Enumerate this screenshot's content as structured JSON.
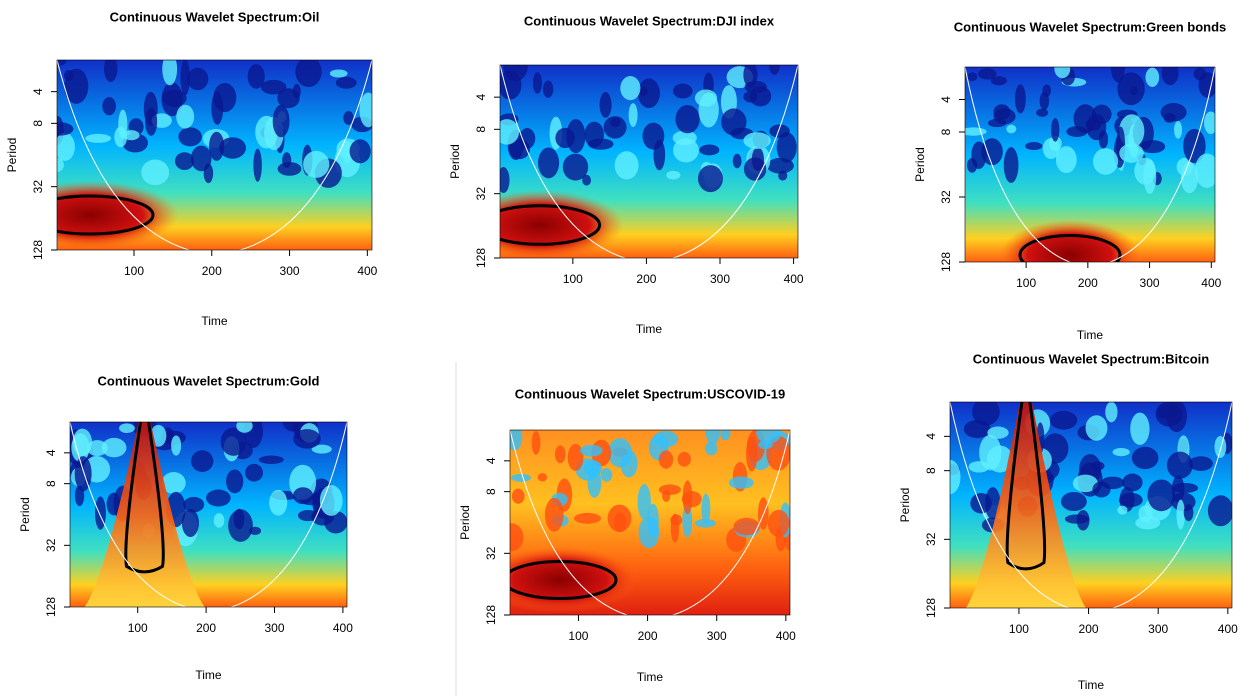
{
  "chart_data": [
    {
      "type": "heatmap",
      "title": "Continuous Wavelet Spectrum:Oil",
      "xlabel": "Time",
      "ylabel": "Period",
      "xlim": [
        1,
        406
      ],
      "xticks": [
        100,
        200,
        300,
        400
      ],
      "ylim": [
        2,
        128
      ],
      "yticks": [
        4,
        8,
        32,
        128
      ],
      "log_y": true,
      "y_inverted": true
    },
    {
      "type": "heatmap",
      "title": "Continuous Wavelet Spectrum:DJI index",
      "xlabel": "Time",
      "ylabel": "Period",
      "xlim": [
        1,
        406
      ],
      "xticks": [
        100,
        200,
        300,
        400
      ],
      "ylim": [
        2,
        128
      ],
      "yticks": [
        4,
        8,
        32,
        128
      ],
      "log_y": true,
      "y_inverted": true
    },
    {
      "type": "heatmap",
      "title": "Continuous Wavelet Spectrum:Green bonds",
      "xlabel": "Time",
      "ylabel": "Period",
      "xlim": [
        1,
        406
      ],
      "xticks": [
        100,
        200,
        300,
        400
      ],
      "ylim": [
        2,
        128
      ],
      "yticks": [
        4,
        8,
        32,
        128
      ],
      "log_y": true,
      "y_inverted": true
    },
    {
      "type": "heatmap",
      "title": "Continuous Wavelet Spectrum:Gold",
      "xlabel": "Time",
      "ylabel": "Period",
      "xlim": [
        1,
        406
      ],
      "xticks": [
        100,
        200,
        300,
        400
      ],
      "ylim": [
        2,
        128
      ],
      "yticks": [
        4,
        8,
        32,
        128
      ],
      "log_y": true,
      "y_inverted": true
    },
    {
      "type": "heatmap",
      "title": "Continuous Wavelet Spectrum:USCOVID-19",
      "xlabel": "Time",
      "ylabel": "Period",
      "xlim": [
        1,
        406
      ],
      "xticks": [
        100,
        200,
        300,
        400
      ],
      "ylim": [
        2,
        128
      ],
      "yticks": [
        4,
        8,
        32,
        128
      ],
      "log_y": true,
      "y_inverted": true
    },
    {
      "type": "heatmap",
      "title": "Continuous Wavelet Spectrum:Bitcoin",
      "xlabel": "Time",
      "ylabel": "Period",
      "xlim": [
        1,
        406
      ],
      "xticks": [
        100,
        200,
        300,
        400
      ],
      "ylim": [
        2,
        128
      ],
      "yticks": [
        4,
        8,
        32,
        128
      ],
      "log_y": true,
      "y_inverted": true
    }
  ]
}
